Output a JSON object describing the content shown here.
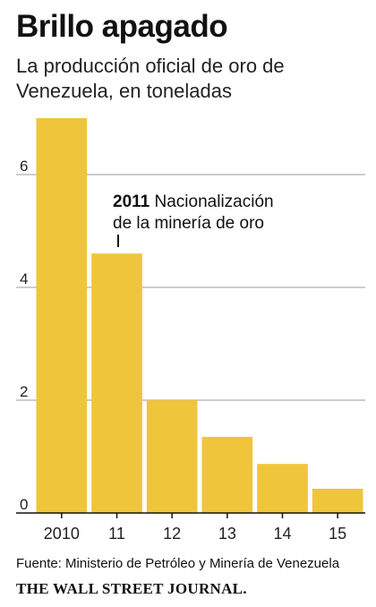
{
  "chart_data": {
    "type": "bar",
    "title": "Brillo apagado",
    "subtitle": "La producción oficial de oro de Venezuela, en toneladas",
    "categories": [
      "2010",
      "11",
      "12",
      "13",
      "14",
      "15"
    ],
    "values": [
      7.0,
      4.6,
      2.0,
      1.35,
      0.87,
      0.43
    ],
    "ylim": [
      0,
      7
    ],
    "yticks": [
      0,
      2,
      4,
      6
    ],
    "xlabel": "",
    "ylabel": "",
    "grid": true,
    "bar_color": "#efc53b",
    "annotation": {
      "year": "2011",
      "text_line1": "Nacionalización",
      "text_line2": "de la minería de oro"
    }
  },
  "source": "Fuente: Ministerio de Petróleo y Minería de Venezuela",
  "brand": "THE WALL STREET JOURNAL."
}
